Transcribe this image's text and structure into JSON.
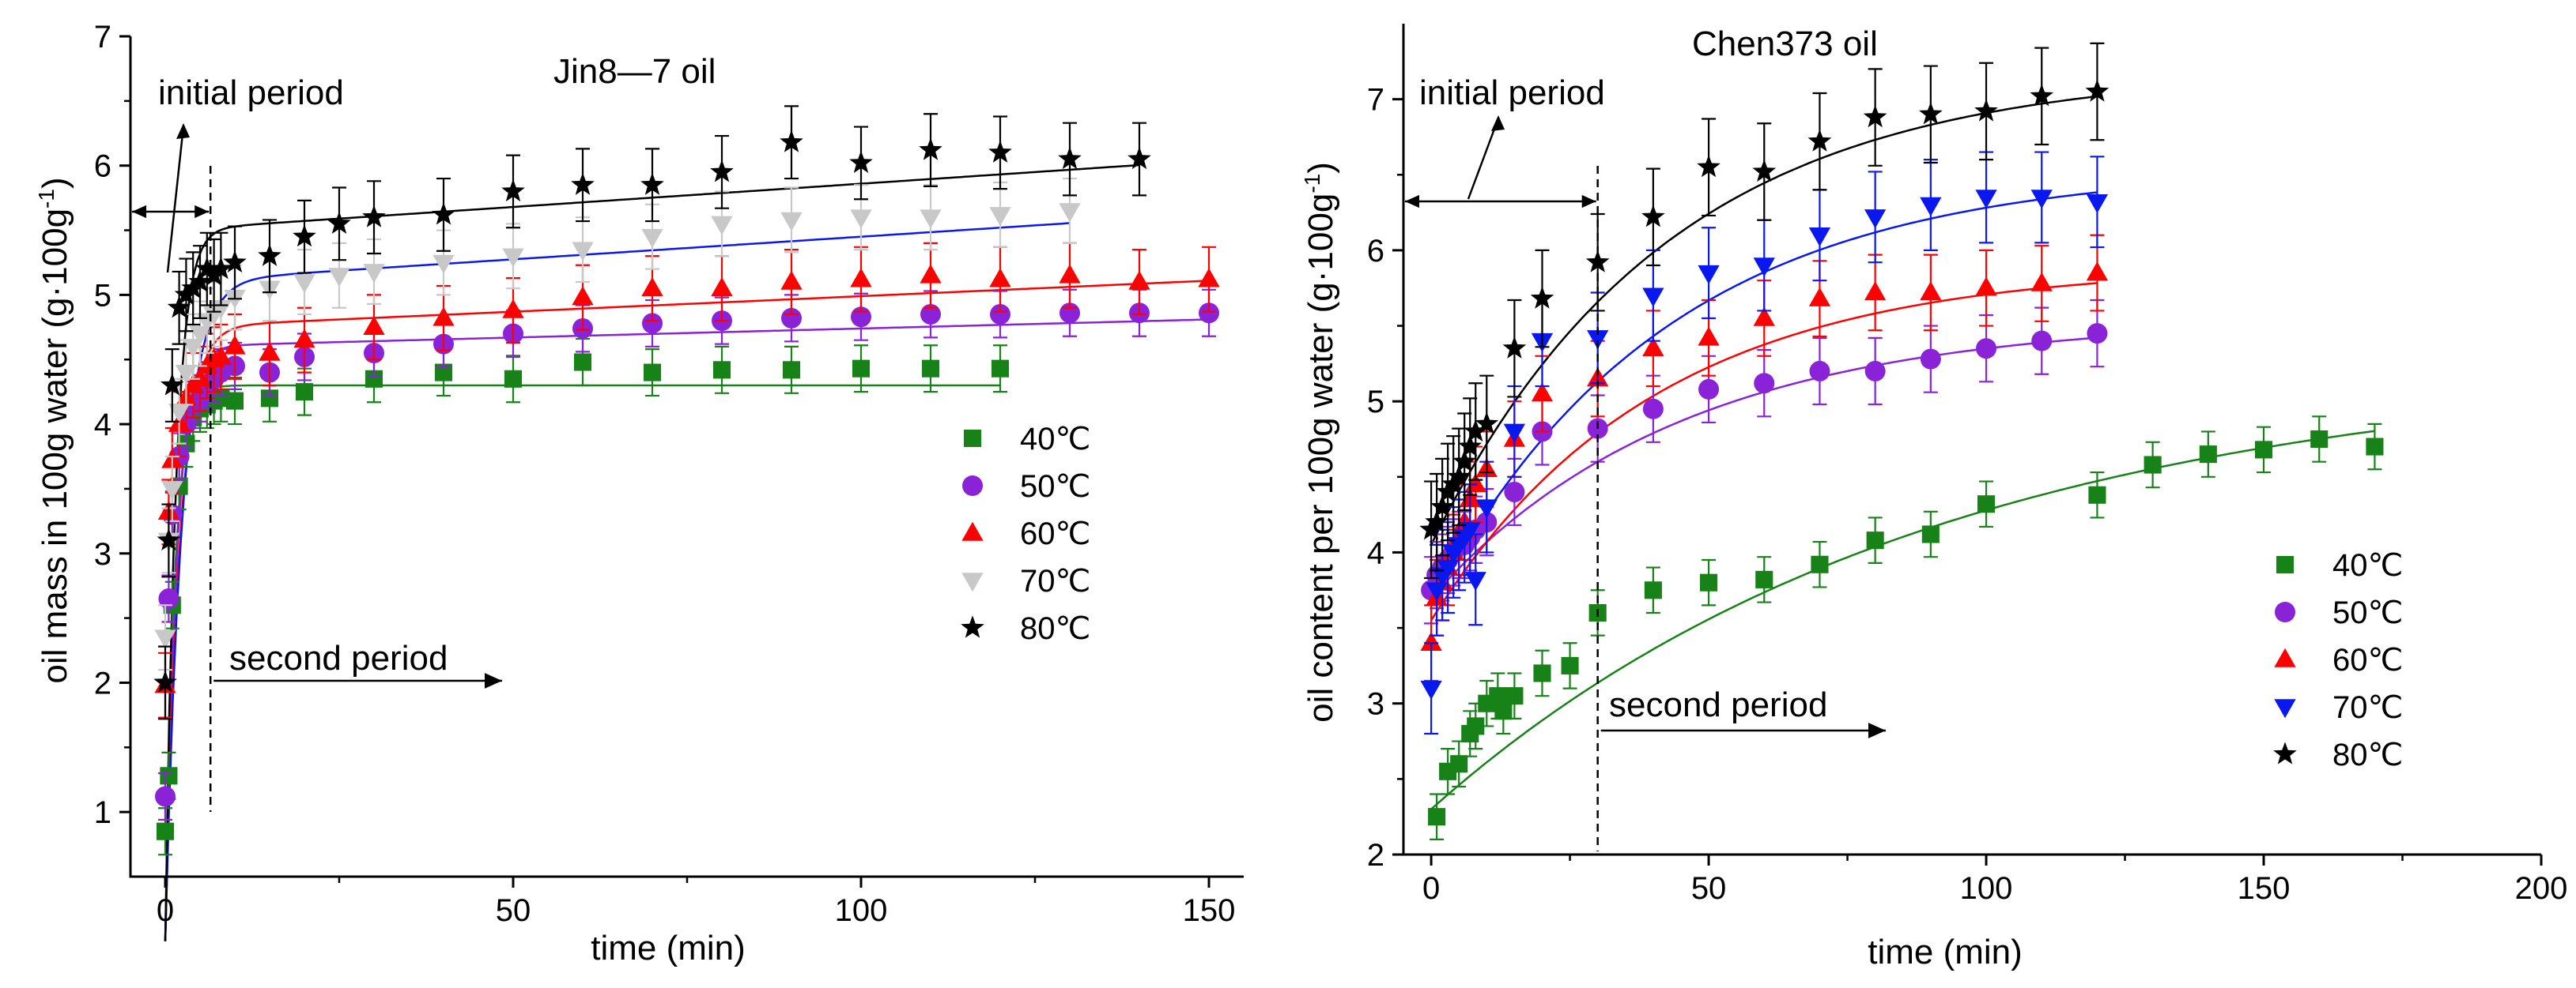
{
  "chart_data": [
    {
      "type": "scatter",
      "title": "Jin8—7 oil",
      "xlabel": "time (min)",
      "ylabel_main": "oil mass in 100g water (g·100g",
      "ylabel_sup": "-1",
      "ylabel_end": ")",
      "xlim": [
        -5,
        155
      ],
      "ylim": [
        0.5,
        7
      ],
      "xticks": [
        0,
        50,
        100,
        150
      ],
      "yticks": [
        1,
        2,
        3,
        4,
        5,
        6,
        7
      ],
      "divider_x": 6.5,
      "annotations": {
        "initial": "initial period",
        "second": "second period"
      },
      "legend": {
        "position": "center-right"
      },
      "series": [
        {
          "name": "40℃",
          "marker": "square",
          "color": "#178217",
          "x": [
            0,
            0.5,
            1,
            2,
            3,
            4,
            5,
            6,
            7,
            8,
            10,
            15,
            20,
            30,
            40,
            50,
            60,
            70,
            80,
            90,
            100,
            110,
            120
          ],
          "y": [
            0.85,
            1.28,
            2.6,
            3.52,
            3.85,
            4.05,
            4.12,
            4.15,
            4.18,
            4.2,
            4.18,
            4.2,
            4.25,
            4.35,
            4.4,
            4.35,
            4.48,
            4.4,
            4.42,
            4.42,
            4.43,
            4.43,
            4.43
          ],
          "err": 0.18,
          "fit": {
            "A": 4.3,
            "tau": 1.3,
            "b": 0
          }
        },
        {
          "name": "50℃",
          "marker": "circle",
          "color": "#8a22d8",
          "x": [
            0,
            0.5,
            1,
            2,
            3,
            4,
            5,
            6,
            7,
            8,
            10,
            15,
            20,
            30,
            40,
            50,
            60,
            70,
            80,
            90,
            100,
            110,
            120,
            130,
            140,
            150
          ],
          "y": [
            1.12,
            2.65,
            3.3,
            3.75,
            4.0,
            4.15,
            4.2,
            4.3,
            4.35,
            4.4,
            4.45,
            4.4,
            4.52,
            4.55,
            4.62,
            4.7,
            4.74,
            4.78,
            4.8,
            4.82,
            4.83,
            4.85,
            4.85,
            4.86,
            4.86,
            4.86
          ],
          "err": 0.18,
          "fit": {
            "A": 4.6,
            "tau": 1.6,
            "b": 0.0014
          }
        },
        {
          "name": "60℃",
          "marker": "triangle-up",
          "color": "#ff0000",
          "x": [
            0,
            0.5,
            1,
            2,
            3,
            4,
            5,
            6,
            7,
            8,
            10,
            15,
            20,
            30,
            40,
            50,
            60,
            70,
            80,
            90,
            100,
            110,
            120,
            130,
            140,
            150
          ],
          "y": [
            1.98,
            3.32,
            3.72,
            4.0,
            4.2,
            4.3,
            4.35,
            4.45,
            4.5,
            4.52,
            4.6,
            4.55,
            4.65,
            4.75,
            4.82,
            4.88,
            4.98,
            5.05,
            5.05,
            5.1,
            5.12,
            5.15,
            5.12,
            5.15,
            5.1,
            5.12
          ],
          "err": 0.25,
          "fit": {
            "A": 4.75,
            "tau": 2.0,
            "b": 0.0024
          }
        },
        {
          "name": "70℃",
          "marker": "triangle-down",
          "color": "#c8c8c8",
          "x": [
            0,
            0.5,
            1,
            2,
            3,
            4,
            5,
            6,
            7,
            8,
            10,
            15,
            20,
            25,
            30,
            40,
            50,
            60,
            70,
            80,
            90,
            100,
            110,
            120,
            130
          ],
          "y": [
            2.35,
            3.1,
            3.5,
            4.1,
            4.4,
            4.6,
            4.7,
            4.8,
            4.85,
            4.9,
            4.98,
            5.05,
            5.1,
            5.15,
            5.18,
            5.25,
            5.3,
            5.35,
            5.45,
            5.55,
            5.58,
            5.6,
            5.6,
            5.62,
            5.65
          ],
          "err": 0.25,
          "fit": {
            "A": 5.1,
            "tau": 2.4,
            "b": 0.0035
          }
        },
        {
          "name": "80℃",
          "marker": "star",
          "color": "#000000",
          "x": [
            0,
            0.5,
            1,
            2,
            3,
            4,
            5,
            6,
            7,
            8,
            10,
            15,
            20,
            25,
            30,
            40,
            50,
            60,
            70,
            80,
            90,
            100,
            110,
            120,
            130,
            140
          ],
          "y": [
            2.0,
            3.1,
            4.3,
            4.9,
            5.0,
            5.05,
            5.1,
            5.2,
            5.15,
            5.2,
            5.25,
            5.3,
            5.45,
            5.55,
            5.6,
            5.62,
            5.8,
            5.85,
            5.85,
            5.95,
            6.18,
            6.02,
            6.12,
            6.1,
            6.05,
            6.05
          ],
          "err": 0.28,
          "fit": {
            "A": 5.5,
            "tau": 1.5,
            "b": 0.0036
          }
        }
      ]
    },
    {
      "type": "scatter",
      "title": "Chen373 oil",
      "xlabel": "time (min)",
      "ylabel_main": "oil content per 100g water (g·100g",
      "ylabel_sup": "-1",
      "ylabel_end": ")",
      "xlim": [
        -5,
        200
      ],
      "ylim": [
        2,
        7.5
      ],
      "xticks": [
        0,
        50,
        100,
        150,
        200
      ],
      "yticks": [
        2,
        3,
        4,
        5,
        6,
        7
      ],
      "divider_x": 30,
      "annotations": {
        "initial": "initial period",
        "second": "second period"
      },
      "legend": {
        "position": "bottom-right"
      },
      "series": [
        {
          "name": "40℃",
          "marker": "square",
          "color": "#178217",
          "x": [
            1,
            3,
            5,
            7,
            8,
            10,
            12,
            13,
            15,
            20,
            25,
            30,
            40,
            50,
            60,
            70,
            80,
            90,
            100,
            120,
            130,
            140,
            150,
            160,
            170
          ],
          "y": [
            2.25,
            2.55,
            2.6,
            2.8,
            2.85,
            3.0,
            3.05,
            2.95,
            3.05,
            3.2,
            3.25,
            3.6,
            3.75,
            3.8,
            3.82,
            3.92,
            4.08,
            4.12,
            4.32,
            4.38,
            4.58,
            4.65,
            4.68,
            4.75,
            4.7
          ],
          "err": 0.15,
          "fit": {
            "y0": 2.3,
            "A": 2.95,
            "tau": 90
          }
        },
        {
          "name": "50℃",
          "marker": "circle",
          "color": "#8a22d8",
          "x": [
            0,
            1,
            2,
            3,
            4,
            5,
            6,
            7,
            8,
            10,
            15,
            20,
            30,
            40,
            50,
            60,
            70,
            80,
            90,
            100,
            110,
            120
          ],
          "y": [
            3.75,
            3.85,
            3.9,
            3.95,
            4.0,
            4.05,
            4.05,
            4.1,
            4.15,
            4.2,
            4.4,
            4.8,
            4.82,
            4.95,
            5.08,
            5.12,
            5.2,
            5.2,
            5.28,
            5.35,
            5.4,
            5.45
          ],
          "err": 0.22,
          "fit": {
            "y0": 3.7,
            "A": 1.85,
            "tau": 45
          }
        },
        {
          "name": "60℃",
          "marker": "triangle-up",
          "color": "#ff0000",
          "x": [
            0,
            1,
            2,
            3,
            4,
            5,
            6,
            7,
            8,
            10,
            15,
            20,
            30,
            40,
            50,
            60,
            70,
            80,
            90,
            100,
            110,
            120
          ],
          "y": [
            3.4,
            3.7,
            3.8,
            3.9,
            4.0,
            4.1,
            4.2,
            4.35,
            4.45,
            4.55,
            4.75,
            5.05,
            5.15,
            5.35,
            5.42,
            5.55,
            5.68,
            5.72,
            5.72,
            5.75,
            5.78,
            5.85
          ],
          "err": 0.25,
          "fit": {
            "y0": 3.55,
            "A": 2.35,
            "tau": 40
          }
        },
        {
          "name": "70℃",
          "marker": "triangle-down",
          "color": "#0a18f0",
          "x": [
            0,
            1,
            2,
            3,
            4,
            5,
            6,
            7,
            8,
            10,
            15,
            20,
            30,
            40,
            50,
            60,
            70,
            80,
            90,
            100,
            110,
            120
          ],
          "y": [
            3.1,
            3.75,
            3.85,
            3.9,
            4.0,
            4.05,
            4.1,
            4.15,
            3.82,
            4.3,
            4.8,
            5.4,
            5.42,
            5.7,
            5.85,
            5.9,
            6.1,
            6.22,
            6.3,
            6.35,
            6.35,
            6.32
          ],
          "err": 0.3,
          "fit": {
            "y0": 3.65,
            "A": 2.9,
            "tau": 42
          }
        },
        {
          "name": "80℃",
          "marker": "star",
          "color": "#000000",
          "x": [
            0,
            1,
            2,
            3,
            4,
            5,
            6,
            7,
            8,
            10,
            15,
            20,
            30,
            40,
            50,
            60,
            70,
            80,
            90,
            100,
            110,
            120
          ],
          "y": [
            4.15,
            4.2,
            4.3,
            4.4,
            4.45,
            4.5,
            4.6,
            4.7,
            4.8,
            4.85,
            5.35,
            5.68,
            5.92,
            6.22,
            6.55,
            6.52,
            6.72,
            6.88,
            6.9,
            6.92,
            7.02,
            7.05
          ],
          "err": 0.32,
          "fit": {
            "y0": 4.05,
            "A": 3.15,
            "tau": 42
          }
        }
      ]
    }
  ]
}
